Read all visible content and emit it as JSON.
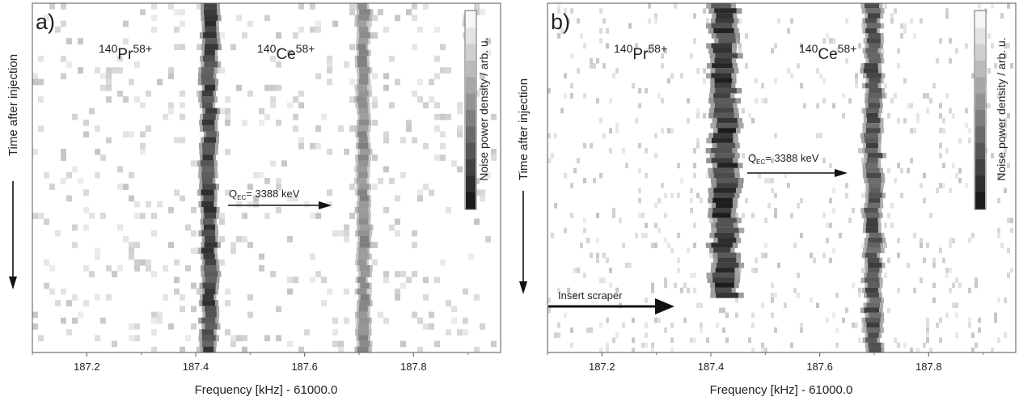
{
  "chart_data": [
    {
      "type": "heatmap",
      "panel_label": "a)",
      "title": "",
      "xlabel": "Frequency [kHz] - 61000.0",
      "ylabel": "Time after injection",
      "xlim": [
        187.1,
        187.96
      ],
      "x_ticks": [
        187.2,
        187.4,
        187.6,
        187.8
      ],
      "x_tick_labels": [
        "187.2",
        "187.4",
        "187.6",
        "187.8"
      ],
      "colorbar_label": "Noise power density / arb. u.",
      "colorscale": [
        "#f7f7f7",
        "#1a1a1a"
      ],
      "traces": [
        {
          "ion": "140",
          "name": "Pr",
          "charge": "58+",
          "center": 187.425,
          "width": 0.022,
          "intensity": 0.92,
          "duration": 1.0
        },
        {
          "ion": "140",
          "name": "Ce",
          "charge": "58+",
          "center": 187.708,
          "width": 0.018,
          "intensity": 0.55,
          "duration": 1.0
        }
      ],
      "labels": [
        {
          "label": "Pr",
          "mass": "140",
          "charge": "58+"
        },
        {
          "label": "Ce",
          "mass": "140",
          "charge": "58+"
        }
      ],
      "annotations": [
        {
          "text_main": "Q",
          "text_sub": "EC",
          "text_rest": "= 3388 keV",
          "arrow_from_x": 187.47,
          "arrow_to_x": 187.68,
          "at_time": 0.53
        }
      ],
      "background_noise": 0.1
    },
    {
      "type": "heatmap",
      "panel_label": "b)",
      "title": "",
      "xlabel": "Frequency [kHz] - 61000.0",
      "ylabel": "Time after injection",
      "xlim": [
        187.1,
        187.96
      ],
      "x_ticks": [
        187.2,
        187.4,
        187.6,
        187.8
      ],
      "x_tick_labels": [
        "187.2",
        "187.4",
        "187.6",
        "187.8"
      ],
      "colorbar_label": "Noise power density / arb. u.",
      "colorscale": [
        "#f7f7f7",
        "#1a1a1a"
      ],
      "traces": [
        {
          "ion": "140",
          "name": "Pr",
          "charge": "58+",
          "center": 187.425,
          "width": 0.036,
          "intensity": 1.0,
          "duration": 0.84
        },
        {
          "ion": "140",
          "name": "Ce",
          "charge": "58+",
          "center": 187.698,
          "width": 0.024,
          "intensity": 0.85,
          "duration": 1.0
        }
      ],
      "labels": [
        {
          "label": "Pr",
          "mass": "140",
          "charge": "58+"
        },
        {
          "label": "Ce",
          "mass": "140",
          "charge": "58+"
        }
      ],
      "annotations": [
        {
          "text_main": "Q",
          "text_sub": "EC",
          "text_rest": "= 3388 keV",
          "arrow_from_x": 187.47,
          "arrow_to_x": 187.675,
          "at_time": 0.48
        },
        {
          "text_main": "Insert scraper",
          "text_sub": "",
          "text_rest": "",
          "arrow_from_x": 187.105,
          "arrow_to_x": 187.345,
          "at_time": 0.89
        }
      ],
      "background_noise": 0.06
    }
  ]
}
